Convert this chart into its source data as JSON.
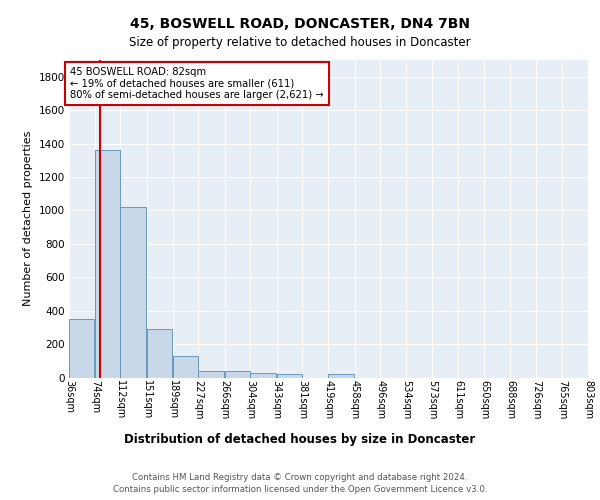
{
  "title1": "45, BOSWELL ROAD, DONCASTER, DN4 7BN",
  "title2": "Size of property relative to detached houses in Doncaster",
  "xlabel": "Distribution of detached houses by size in Doncaster",
  "ylabel": "Number of detached properties",
  "footer": "Contains HM Land Registry data © Crown copyright and database right 2024.\nContains public sector information licensed under the Open Government Licence v3.0.",
  "bin_labels": [
    "36sqm",
    "74sqm",
    "112sqm",
    "151sqm",
    "189sqm",
    "227sqm",
    "266sqm",
    "304sqm",
    "343sqm",
    "381sqm",
    "419sqm",
    "458sqm",
    "496sqm",
    "534sqm",
    "573sqm",
    "611sqm",
    "650sqm",
    "688sqm",
    "726sqm",
    "765sqm",
    "803sqm"
  ],
  "bin_edges": [
    36,
    74,
    112,
    151,
    189,
    227,
    266,
    304,
    343,
    381,
    419,
    458,
    496,
    534,
    573,
    611,
    650,
    688,
    726,
    765,
    803
  ],
  "bar_heights": [
    350,
    1360,
    1020,
    290,
    130,
    40,
    38,
    28,
    20,
    0,
    20,
    0,
    0,
    0,
    0,
    0,
    0,
    0,
    0,
    0
  ],
  "bar_color": "#c8d8e8",
  "bar_edge_color": "#6699bb",
  "property_value": 82,
  "property_line_color": "#cc0000",
  "annotation_text": "45 BOSWELL ROAD: 82sqm\n← 19% of detached houses are smaller (611)\n80% of semi-detached houses are larger (2,621) →",
  "annotation_box_color": "#ffffff",
  "annotation_box_edge": "#cc0000",
  "ylim": [
    0,
    1900
  ],
  "yticks": [
    0,
    200,
    400,
    600,
    800,
    1000,
    1200,
    1400,
    1600,
    1800
  ],
  "plot_bg_color": "#e8eef5",
  "grid_color": "#ffffff"
}
